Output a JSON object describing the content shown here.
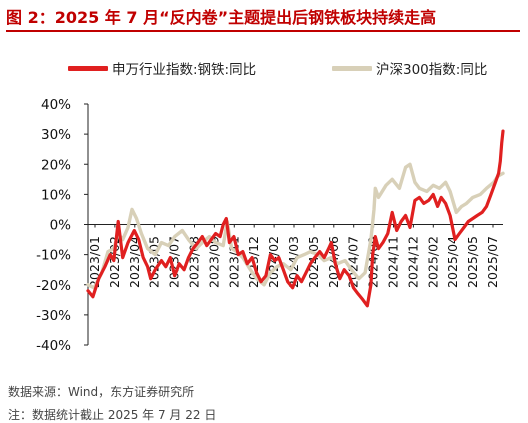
{
  "title": "图 2：2025 年 7 月“反内卷”主题提出后钢铁板块持续走高",
  "footer": {
    "source": "数据来源：Wind，东方证券研究所",
    "note": "注：数据统计截止 2025 年 7 月 22 日"
  },
  "colors": {
    "steel": "#e02020",
    "csi300": "#d8d0b8",
    "title": "#c00000"
  },
  "chart_data": {
    "type": "line",
    "title": "图 2：2025 年 7 月“反内卷”主题提出后钢铁板块持续走高",
    "xlabel": "",
    "ylabel": "",
    "ylim": [
      -40,
      40
    ],
    "y_ticks": [
      "40%",
      "30%",
      "20%",
      "10%",
      "0%",
      "-10%",
      "-20%",
      "-30%",
      "-40%"
    ],
    "x_ticks": [
      "2023/01",
      "2023/02",
      "2023/04",
      "2023/05",
      "2023/07",
      "2023/08",
      "2023/09",
      "2023/11",
      "2023/12",
      "2024/02",
      "2024/03",
      "2024/05",
      "2024/06",
      "2024/07",
      "2024/09",
      "2024/11",
      "2024/12",
      "2025/02",
      "2025/04",
      "2025/05",
      "2025/07"
    ],
    "legend_position": "top",
    "grid": false,
    "series": [
      {
        "name": "申万行业指数:钢铁:同比",
        "color": "#e02020",
        "points": [
          [
            "2023-01-01",
            -22
          ],
          [
            "2023-01-12",
            -24
          ],
          [
            "2023-01-25",
            -18
          ],
          [
            "2023-02-08",
            -14
          ],
          [
            "2023-02-20",
            -10
          ],
          [
            "2023-02-28",
            -12
          ],
          [
            "2023-03-10",
            1
          ],
          [
            "2023-03-20",
            -11
          ],
          [
            "2023-04-01",
            -6
          ],
          [
            "2023-04-15",
            -2
          ],
          [
            "2023-04-25",
            -5
          ],
          [
            "2023-05-05",
            -11
          ],
          [
            "2023-05-15",
            -14
          ],
          [
            "2023-05-22",
            -18
          ],
          [
            "2023-06-01",
            -15
          ],
          [
            "2023-06-15",
            -12
          ],
          [
            "2023-06-25",
            -14
          ],
          [
            "2023-07-05",
            -11
          ],
          [
            "2023-07-15",
            -17
          ],
          [
            "2023-07-25",
            -13
          ],
          [
            "2023-08-05",
            -15
          ],
          [
            "2023-08-15",
            -11
          ],
          [
            "2023-08-25",
            -8
          ],
          [
            "2023-09-05",
            -6
          ],
          [
            "2023-09-15",
            -4
          ],
          [
            "2023-09-25",
            -7
          ],
          [
            "2023-10-05",
            -5
          ],
          [
            "2023-10-15",
            -3
          ],
          [
            "2023-10-25",
            -4
          ],
          [
            "2023-11-01",
            0
          ],
          [
            "2023-11-08",
            2
          ],
          [
            "2023-11-15",
            -6
          ],
          [
            "2023-11-25",
            -4
          ],
          [
            "2023-12-05",
            -10
          ],
          [
            "2023-12-15",
            -9
          ],
          [
            "2023-12-25",
            -13
          ],
          [
            "2024-01-05",
            -11
          ],
          [
            "2024-01-15",
            -16
          ],
          [
            "2024-01-25",
            -19
          ],
          [
            "2024-02-05",
            -17
          ],
          [
            "2024-02-15",
            -10
          ],
          [
            "2024-02-25",
            -12
          ],
          [
            "2024-03-05",
            -11
          ],
          [
            "2024-03-15",
            -15
          ],
          [
            "2024-03-25",
            -19
          ],
          [
            "2024-04-05",
            -21
          ],
          [
            "2024-04-15",
            -17
          ],
          [
            "2024-04-25",
            -19
          ],
          [
            "2024-05-05",
            -16
          ],
          [
            "2024-05-15",
            -13
          ],
          [
            "2024-05-25",
            -11
          ],
          [
            "2024-06-05",
            -9
          ],
          [
            "2024-06-15",
            -11
          ],
          [
            "2024-06-25",
            -8
          ],
          [
            "2024-07-01",
            -6
          ],
          [
            "2024-07-10",
            -13
          ],
          [
            "2024-07-20",
            -18
          ],
          [
            "2024-07-30",
            -15
          ],
          [
            "2024-08-10",
            -17
          ],
          [
            "2024-08-20",
            -21
          ],
          [
            "2024-08-30",
            -23
          ],
          [
            "2024-09-10",
            -25
          ],
          [
            "2024-09-20",
            -27
          ],
          [
            "2024-09-28",
            -20
          ],
          [
            "2024-10-02",
            -10
          ],
          [
            "2024-10-08",
            -4
          ],
          [
            "2024-10-15",
            -8
          ],
          [
            "2024-10-25",
            -6
          ],
          [
            "2024-11-05",
            -3
          ],
          [
            "2024-11-15",
            4
          ],
          [
            "2024-11-25",
            -2
          ],
          [
            "2024-12-05",
            1
          ],
          [
            "2024-12-15",
            3
          ],
          [
            "2024-12-25",
            -1
          ],
          [
            "2025-01-05",
            8
          ],
          [
            "2025-01-15",
            9
          ],
          [
            "2025-01-25",
            7
          ],
          [
            "2025-02-05",
            8
          ],
          [
            "2025-02-15",
            10
          ],
          [
            "2025-02-25",
            6
          ],
          [
            "2025-03-05",
            9
          ],
          [
            "2025-03-15",
            7
          ],
          [
            "2025-03-25",
            3
          ],
          [
            "2025-04-05",
            -5
          ],
          [
            "2025-04-15",
            -3
          ],
          [
            "2025-04-25",
            -1
          ],
          [
            "2025-05-05",
            1
          ],
          [
            "2025-05-15",
            2
          ],
          [
            "2025-05-25",
            3
          ],
          [
            "2025-06-05",
            4
          ],
          [
            "2025-06-15",
            6
          ],
          [
            "2025-06-25",
            10
          ],
          [
            "2025-07-05",
            14
          ],
          [
            "2025-07-12",
            17
          ],
          [
            "2025-07-16",
            21
          ],
          [
            "2025-07-19",
            27
          ],
          [
            "2025-07-22",
            31
          ]
        ]
      },
      {
        "name": "沪深300指数:同比",
        "color": "#d8d0b8",
        "points": [
          [
            "2023-01-01",
            -20
          ],
          [
            "2023-01-15",
            -21
          ],
          [
            "2023-02-01",
            -16
          ],
          [
            "2023-02-15",
            -9
          ],
          [
            "2023-02-28",
            -8
          ],
          [
            "2023-03-10",
            -3
          ],
          [
            "2023-03-20",
            -5
          ],
          [
            "2023-04-01",
            -1
          ],
          [
            "2023-04-10",
            5
          ],
          [
            "2023-04-20",
            2
          ],
          [
            "2023-05-01",
            -3
          ],
          [
            "2023-05-15",
            -8
          ],
          [
            "2023-06-01",
            -10
          ],
          [
            "2023-06-15",
            -6
          ],
          [
            "2023-07-01",
            -7
          ],
          [
            "2023-07-15",
            -4
          ],
          [
            "2023-08-01",
            -2
          ],
          [
            "2023-08-15",
            -5
          ],
          [
            "2023-09-01",
            -8
          ],
          [
            "2023-09-15",
            -6
          ],
          [
            "2023-10-01",
            -4
          ],
          [
            "2023-10-15",
            -6
          ],
          [
            "2023-11-01",
            -7
          ],
          [
            "2023-11-10",
            1
          ],
          [
            "2023-11-20",
            -8
          ],
          [
            "2023-12-01",
            -9
          ],
          [
            "2023-12-15",
            -11
          ],
          [
            "2024-01-01",
            -15
          ],
          [
            "2024-01-15",
            -18
          ],
          [
            "2024-02-01",
            -20
          ],
          [
            "2024-02-15",
            -16
          ],
          [
            "2024-03-01",
            -14
          ],
          [
            "2024-03-15",
            -13
          ],
          [
            "2024-04-01",
            -15
          ],
          [
            "2024-04-15",
            -11
          ],
          [
            "2024-05-01",
            -10
          ],
          [
            "2024-05-15",
            -9
          ],
          [
            "2024-06-01",
            -10
          ],
          [
            "2024-06-15",
            -12
          ],
          [
            "2024-07-01",
            -11
          ],
          [
            "2024-07-15",
            -13
          ],
          [
            "2024-08-01",
            -12
          ],
          [
            "2024-08-15",
            -15
          ],
          [
            "2024-09-01",
            -18
          ],
          [
            "2024-09-15",
            -16
          ],
          [
            "2024-09-28",
            -5
          ],
          [
            "2024-10-05",
            5
          ],
          [
            "2024-10-08",
            12
          ],
          [
            "2024-10-15",
            9
          ],
          [
            "2024-11-01",
            13
          ],
          [
            "2024-11-15",
            15
          ],
          [
            "2024-12-01",
            12
          ],
          [
            "2024-12-15",
            19
          ],
          [
            "2024-12-25",
            20
          ],
          [
            "2025-01-05",
            14
          ],
          [
            "2025-01-15",
            12
          ],
          [
            "2025-02-01",
            11
          ],
          [
            "2025-02-15",
            13
          ],
          [
            "2025-03-01",
            12
          ],
          [
            "2025-03-15",
            14
          ],
          [
            "2025-03-25",
            11
          ],
          [
            "2025-04-08",
            4
          ],
          [
            "2025-04-20",
            6
          ],
          [
            "2025-05-01",
            7
          ],
          [
            "2025-05-15",
            9
          ],
          [
            "2025-06-01",
            10
          ],
          [
            "2025-06-15",
            12
          ],
          [
            "2025-07-01",
            14
          ],
          [
            "2025-07-10",
            16
          ],
          [
            "2025-07-22",
            17
          ]
        ]
      }
    ]
  }
}
